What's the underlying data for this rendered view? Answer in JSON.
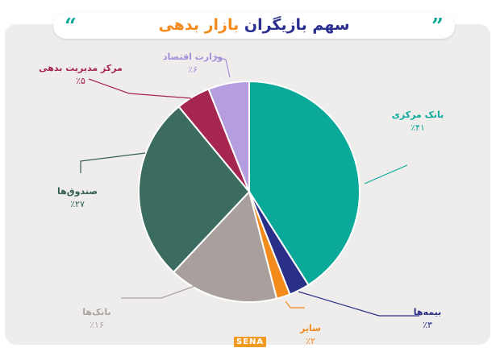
{
  "header": {
    "title_main": "سهم بازیگران",
    "title_accent": "بازار بدهی",
    "quote_left": "“",
    "quote_right": "”"
  },
  "chart_data": {
    "type": "pie",
    "title": "سهم بازیگران بازار بدهی",
    "slices": [
      {
        "label": "بانک مرکزی",
        "value_text": "٪۴۱",
        "value": 41,
        "color": "#0aa99a"
      },
      {
        "label": "بیمه‌ها",
        "value_text": "٪۳",
        "value": 3,
        "color": "#2a2f87"
      },
      {
        "label": "سایر",
        "value_text": "٪۲",
        "value": 2,
        "color": "#f28a1c"
      },
      {
        "label": "بانک‌ها",
        "value_text": "٪۱۶",
        "value": 16,
        "color": "#a9a09e"
      },
      {
        "label": "صندوق‌ها",
        "value_text": "٪۲۷",
        "value": 27,
        "color": "#3c6c5f"
      },
      {
        "label": "مرکز مدیریت بدهی",
        "value_text": "٪۵",
        "value": 5,
        "color": "#a5264e"
      },
      {
        "label": "وزارت اقتصاد",
        "value_text": "٪۶",
        "value": 6,
        "color": "#b49ee0"
      }
    ]
  },
  "label_colors": {
    "بانک مرکزی": "#0aa99a",
    "بیمه‌ها": "#2a2f87",
    "سایر": "#f28a1c",
    "بانک‌ها": "#a9a3a2",
    "صندوق‌ها": "#355f52",
    "مرکز مدیریت بدهی": "#a5264e",
    "وزارت اقتصاد": "#a48fd8"
  },
  "logo": {
    "text": "SENA"
  }
}
